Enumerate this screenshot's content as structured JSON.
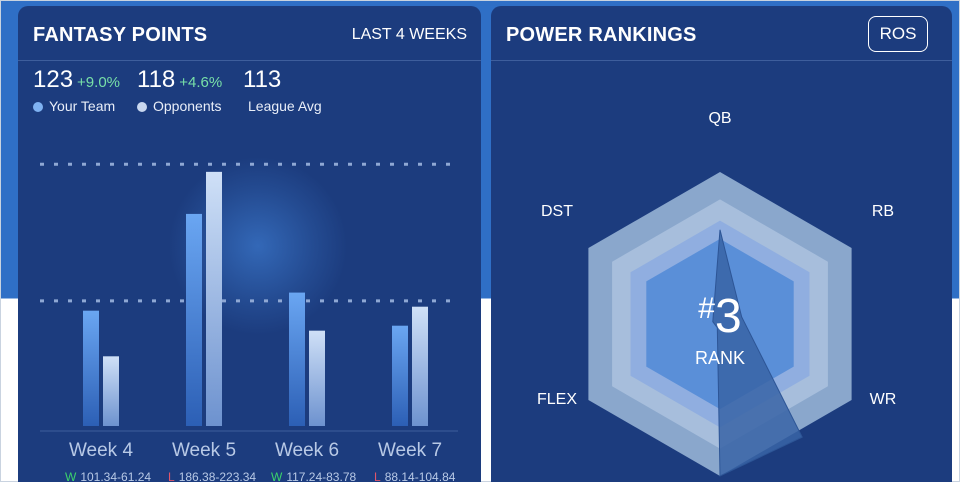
{
  "fantasy_points": {
    "title": "FANTASY POINTS",
    "range_label": "LAST 4 WEEKS",
    "stats": [
      {
        "value": "123",
        "change": "+9.0%"
      },
      {
        "value": "118",
        "change": "+4.6%"
      },
      {
        "value": "113",
        "change": ""
      }
    ],
    "legend": [
      {
        "label": "Your Team",
        "color": "#7fb2f2"
      },
      {
        "label": "Opponents",
        "color": "#c9d8f0"
      },
      {
        "label": "League Avg",
        "color": ""
      }
    ],
    "results": [
      {
        "outcome": "W",
        "score": "101.34-61.24"
      },
      {
        "outcome": "L",
        "score": "186.38-223.34"
      },
      {
        "outcome": "W",
        "score": "117.24-83.78"
      },
      {
        "outcome": "L",
        "score": "88.14-104.84"
      }
    ]
  },
  "power_rankings": {
    "title": "POWER RANKINGS",
    "toggle_label": "ROS",
    "rank_hash": "#",
    "rank_number": "3",
    "rank_label": "RANK"
  },
  "chart_data": [
    {
      "type": "bar",
      "categories": [
        "Week 4",
        "Week 5",
        "Week 6",
        "Week 7"
      ],
      "series": [
        {
          "name": "Your Team",
          "values": [
            101.34,
            186.38,
            117.24,
            88.14
          ]
        },
        {
          "name": "Opponents",
          "values": [
            61.24,
            223.34,
            83.78,
            104.84
          ]
        }
      ],
      "reference_lines": [
        110,
        230
      ],
      "ylim": [
        0,
        290
      ],
      "colors": {
        "your_team": "#6aa6f2",
        "opponents": "#c8d9f3",
        "outcome_win": "#3bd36b",
        "outcome_loss": "#e0566b"
      }
    },
    {
      "type": "radar",
      "axes": [
        "QB",
        "RB",
        "WR",
        "FLEX",
        "DST"
      ],
      "series": [
        {
          "values": [
            0.62,
            0.15,
            0.92,
            0.03,
            0.05
          ]
        }
      ],
      "rmax": 1,
      "colors": {
        "ring_outer": "#8aa7cc",
        "ring_2": "#a7bedc",
        "ring_3": "#90aee0",
        "ring_core": "#5a8fd8",
        "polygon": "#3864a6"
      }
    }
  ]
}
